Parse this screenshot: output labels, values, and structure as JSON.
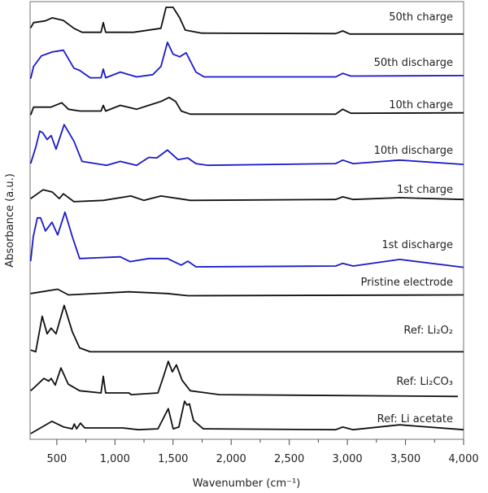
{
  "chart_data": {
    "type": "line",
    "title": "",
    "xlabel": "Wavenumber (cm⁻¹)",
    "ylabel": "Absorbance (a.u.)",
    "xlim": [
      270,
      4000
    ],
    "ylim": [
      0,
      10
    ],
    "xticks": [
      500,
      1000,
      1500,
      2000,
      2500,
      3000,
      3500,
      4000
    ],
    "xtick_labels": [
      "500",
      "1,000",
      "1,500",
      "2,000",
      "2,500",
      "3,000",
      "3,500",
      "4,000"
    ],
    "minor_xtick_step": 250,
    "y_ticks_shown": false,
    "grid": false,
    "legend": "inline labels at right end of each trace",
    "colors": {
      "charge": "#111111",
      "discharge": "#1a1acc",
      "reference": "#111111"
    },
    "series": [
      {
        "name": "50th charge",
        "color": "#111111",
        "points": [
          [
            275,
            9.4
          ],
          [
            300,
            9.52
          ],
          [
            400,
            9.56
          ],
          [
            460,
            9.63
          ],
          [
            556,
            9.57
          ],
          [
            647,
            9.39
          ],
          [
            717,
            9.3
          ],
          [
            880,
            9.3
          ],
          [
            900,
            9.52
          ],
          [
            920,
            9.3
          ],
          [
            1160,
            9.3
          ],
          [
            1395,
            9.39
          ],
          [
            1440,
            9.87
          ],
          [
            1500,
            9.87
          ],
          [
            1557,
            9.63
          ],
          [
            1605,
            9.35
          ],
          [
            1745,
            9.28
          ],
          [
            2900,
            9.27
          ],
          [
            2960,
            9.33
          ],
          [
            3020,
            9.26
          ],
          [
            4000,
            9.26
          ]
        ]
      },
      {
        "name": "50th discharge",
        "color": "#1a1acc",
        "points": [
          [
            275,
            8.24
          ],
          [
            300,
            8.52
          ],
          [
            367,
            8.76
          ],
          [
            460,
            8.85
          ],
          [
            556,
            8.89
          ],
          [
            647,
            8.48
          ],
          [
            696,
            8.43
          ],
          [
            787,
            8.26
          ],
          [
            880,
            8.26
          ],
          [
            900,
            8.46
          ],
          [
            920,
            8.26
          ],
          [
            1046,
            8.39
          ],
          [
            1186,
            8.28
          ],
          [
            1326,
            8.33
          ],
          [
            1396,
            8.52
          ],
          [
            1452,
            9.07
          ],
          [
            1500,
            8.8
          ],
          [
            1557,
            8.74
          ],
          [
            1613,
            8.83
          ],
          [
            1697,
            8.39
          ],
          [
            1767,
            8.28
          ],
          [
            2900,
            8.28
          ],
          [
            2960,
            8.36
          ],
          [
            3030,
            8.3
          ],
          [
            4000,
            8.31
          ]
        ]
      },
      {
        "name": "10th charge",
        "color": "#111111",
        "points": [
          [
            275,
            7.41
          ],
          [
            300,
            7.59
          ],
          [
            450,
            7.59
          ],
          [
            542,
            7.69
          ],
          [
            600,
            7.54
          ],
          [
            700,
            7.5
          ],
          [
            880,
            7.5
          ],
          [
            900,
            7.63
          ],
          [
            920,
            7.5
          ],
          [
            1046,
            7.63
          ],
          [
            1186,
            7.54
          ],
          [
            1290,
            7.63
          ],
          [
            1396,
            7.72
          ],
          [
            1466,
            7.81
          ],
          [
            1522,
            7.72
          ],
          [
            1571,
            7.5
          ],
          [
            1648,
            7.43
          ],
          [
            2900,
            7.43
          ],
          [
            2960,
            7.54
          ],
          [
            3030,
            7.45
          ],
          [
            4000,
            7.46
          ]
        ]
      },
      {
        "name": "10th discharge",
        "color": "#1a1acc",
        "points": [
          [
            275,
            6.3
          ],
          [
            318,
            6.67
          ],
          [
            353,
            7.04
          ],
          [
            380,
            7.0
          ],
          [
            416,
            6.85
          ],
          [
            451,
            6.94
          ],
          [
            493,
            6.63
          ],
          [
            563,
            7.19
          ],
          [
            647,
            6.81
          ],
          [
            717,
            6.35
          ],
          [
            927,
            6.26
          ],
          [
            1046,
            6.35
          ],
          [
            1186,
            6.26
          ],
          [
            1290,
            6.44
          ],
          [
            1360,
            6.43
          ],
          [
            1452,
            6.61
          ],
          [
            1543,
            6.39
          ],
          [
            1627,
            6.43
          ],
          [
            1697,
            6.3
          ],
          [
            1800,
            6.26
          ],
          [
            2900,
            6.3
          ],
          [
            2960,
            6.38
          ],
          [
            3050,
            6.3
          ],
          [
            3450,
            6.38
          ],
          [
            4000,
            6.28
          ]
        ]
      },
      {
        "name": "1st charge",
        "color": "#111111",
        "points": [
          [
            275,
            5.5
          ],
          [
            381,
            5.7
          ],
          [
            460,
            5.65
          ],
          [
            521,
            5.5
          ],
          [
            556,
            5.61
          ],
          [
            647,
            5.43
          ],
          [
            900,
            5.46
          ],
          [
            1137,
            5.56
          ],
          [
            1250,
            5.46
          ],
          [
            1396,
            5.56
          ],
          [
            1650,
            5.46
          ],
          [
            2900,
            5.48
          ],
          [
            2960,
            5.54
          ],
          [
            3050,
            5.48
          ],
          [
            3450,
            5.52
          ],
          [
            4000,
            5.48
          ]
        ]
      },
      {
        "name": "1st discharge",
        "color": "#1a1acc",
        "points": [
          [
            275,
            4.07
          ],
          [
            297,
            4.63
          ],
          [
            332,
            5.06
          ],
          [
            360,
            5.06
          ],
          [
            402,
            4.76
          ],
          [
            458,
            4.96
          ],
          [
            507,
            4.67
          ],
          [
            570,
            5.19
          ],
          [
            633,
            4.63
          ],
          [
            696,
            4.13
          ],
          [
            1046,
            4.17
          ],
          [
            1130,
            4.06
          ],
          [
            1290,
            4.13
          ],
          [
            1452,
            4.13
          ],
          [
            1571,
            3.98
          ],
          [
            1627,
            4.07
          ],
          [
            1697,
            3.94
          ],
          [
            2900,
            3.96
          ],
          [
            2960,
            4.02
          ],
          [
            3050,
            3.96
          ],
          [
            3450,
            4.11
          ],
          [
            4000,
            3.93
          ]
        ]
      },
      {
        "name": "Pristine electrode",
        "color": "#111111",
        "points": [
          [
            275,
            3.33
          ],
          [
            507,
            3.43
          ],
          [
            600,
            3.3
          ],
          [
            1116,
            3.37
          ],
          [
            1452,
            3.33
          ],
          [
            1627,
            3.28
          ],
          [
            4000,
            3.3
          ]
        ]
      },
      {
        "name": "Ref: Li₂O₂",
        "color": "#111111",
        "points": [
          [
            275,
            2.04
          ],
          [
            318,
            2.0
          ],
          [
            374,
            2.81
          ],
          [
            416,
            2.41
          ],
          [
            451,
            2.54
          ],
          [
            493,
            2.41
          ],
          [
            563,
            3.06
          ],
          [
            633,
            2.46
          ],
          [
            696,
            2.09
          ],
          [
            787,
            2.0
          ],
          [
            4000,
            2.0
          ]
        ]
      },
      {
        "name": "Ref: Li₂CO₃",
        "color": "#111111",
        "points": [
          [
            275,
            1.11
          ],
          [
            300,
            1.17
          ],
          [
            388,
            1.39
          ],
          [
            430,
            1.33
          ],
          [
            451,
            1.39
          ],
          [
            486,
            1.24
          ],
          [
            535,
            1.63
          ],
          [
            598,
            1.26
          ],
          [
            696,
            1.11
          ],
          [
            880,
            1.06
          ],
          [
            900,
            1.44
          ],
          [
            920,
            1.06
          ],
          [
            1120,
            1.06
          ],
          [
            1140,
            1.02
          ],
          [
            1370,
            1.06
          ],
          [
            1417,
            1.43
          ],
          [
            1459,
            1.78
          ],
          [
            1494,
            1.54
          ],
          [
            1529,
            1.7
          ],
          [
            1578,
            1.35
          ],
          [
            1648,
            1.11
          ],
          [
            1900,
            1.02
          ],
          [
            3950,
            0.98
          ]
        ]
      },
      {
        "name": "Ref: Li acetate",
        "color": "#111111",
        "points": [
          [
            275,
            0.13
          ],
          [
            458,
            0.41
          ],
          [
            560,
            0.28
          ],
          [
            633,
            0.24
          ],
          [
            650,
            0.35
          ],
          [
            670,
            0.24
          ],
          [
            703,
            0.37
          ],
          [
            740,
            0.26
          ],
          [
            1067,
            0.26
          ],
          [
            1200,
            0.22
          ],
          [
            1370,
            0.24
          ],
          [
            1459,
            0.7
          ],
          [
            1501,
            0.24
          ],
          [
            1550,
            0.28
          ],
          [
            1599,
            0.87
          ],
          [
            1620,
            0.78
          ],
          [
            1641,
            0.81
          ],
          [
            1676,
            0.43
          ],
          [
            1760,
            0.24
          ],
          [
            2900,
            0.22
          ],
          [
            2960,
            0.28
          ],
          [
            3050,
            0.22
          ],
          [
            3450,
            0.33
          ],
          [
            4000,
            0.22
          ]
        ]
      }
    ]
  }
}
